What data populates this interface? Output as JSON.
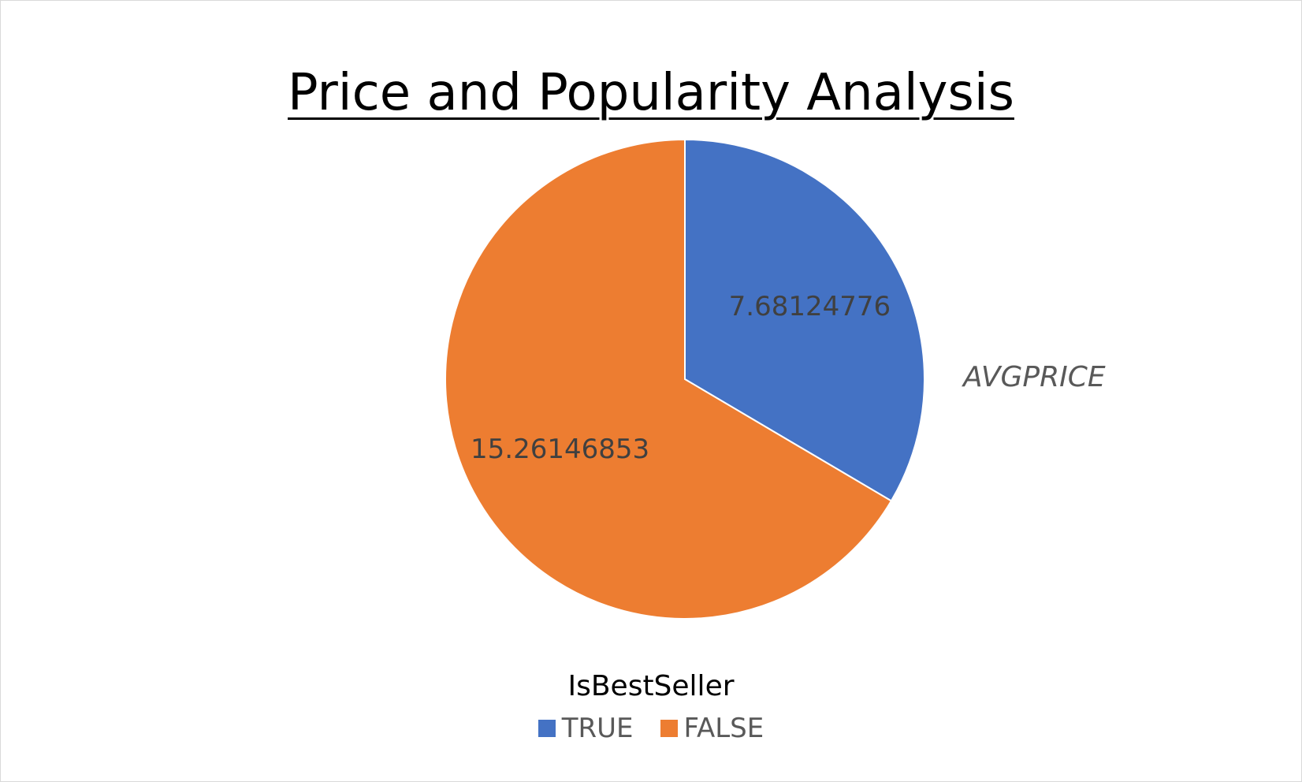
{
  "chart_data": {
    "type": "pie",
    "title": "Price and Popularity Analysis",
    "series_name": "AVGPRICE",
    "legend_title": "IsBestSeller",
    "legend_position": "bottom",
    "categories": [
      "TRUE",
      "FALSE"
    ],
    "values": [
      7.68124776,
      15.26146853
    ],
    "data_labels": [
      "7.68124776",
      "15.26146853"
    ],
    "colors": [
      "#4472c4",
      "#ed7d31"
    ]
  }
}
